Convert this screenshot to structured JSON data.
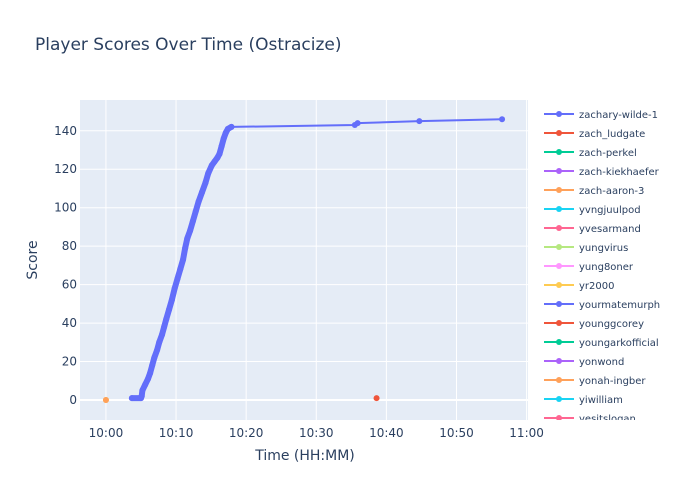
{
  "chart_data": {
    "type": "line",
    "title": "Player Scores Over Time (Ostracize)",
    "xlabel": "Time (HH:MM)",
    "ylabel": "Score",
    "xlim": [
      "09:56:18",
      "11:00:12"
    ],
    "ylim": [
      -10.4,
      156
    ],
    "x_ticks": [
      "10:00",
      "10:10",
      "10:20",
      "10:30",
      "10:40",
      "10:50",
      "11:00"
    ],
    "y_ticks": [
      0,
      20,
      40,
      60,
      80,
      100,
      120,
      140
    ],
    "grid": true,
    "legend_position": "right",
    "series": [
      {
        "name": "zachary-wilde-1",
        "color": "#636efa",
        "points": [
          [
            "10:03:42",
            1
          ],
          [
            "10:05:00",
            1
          ],
          [
            "10:05:06",
            2
          ],
          [
            "10:05:12",
            5
          ],
          [
            "10:05:36",
            8
          ],
          [
            "10:06:00",
            11
          ],
          [
            "10:06:18",
            14
          ],
          [
            "10:06:36",
            18
          ],
          [
            "10:06:54",
            22
          ],
          [
            "10:07:18",
            26
          ],
          [
            "10:07:36",
            30
          ],
          [
            "10:08:00",
            34
          ],
          [
            "10:08:18",
            38
          ],
          [
            "10:08:36",
            42
          ],
          [
            "10:09:00",
            47
          ],
          [
            "10:09:24",
            52
          ],
          [
            "10:09:48",
            58
          ],
          [
            "10:10:12",
            63
          ],
          [
            "10:10:36",
            68
          ],
          [
            "10:11:00",
            73
          ],
          [
            "10:11:18",
            79
          ],
          [
            "10:11:36",
            84
          ],
          [
            "10:12:00",
            88
          ],
          [
            "10:12:24",
            93
          ],
          [
            "10:12:48",
            98
          ],
          [
            "10:13:12",
            103
          ],
          [
            "10:13:42",
            108
          ],
          [
            "10:14:12",
            113
          ],
          [
            "10:14:36",
            118
          ],
          [
            "10:15:06",
            122
          ],
          [
            "10:15:30",
            124
          ],
          [
            "10:15:54",
            126
          ],
          [
            "10:16:12",
            128
          ],
          [
            "10:16:30",
            132
          ],
          [
            "10:16:48",
            136
          ],
          [
            "10:17:06",
            139
          ],
          [
            "10:17:24",
            141
          ],
          [
            "10:17:54",
            142
          ],
          [
            "10:35:30",
            143
          ],
          [
            "10:35:54",
            144
          ],
          [
            "10:44:42",
            145
          ],
          [
            "10:56:30",
            146
          ]
        ]
      },
      {
        "name": "zach_ludgate",
        "color": "#EF553B",
        "points": [
          [
            "10:38:36",
            1
          ]
        ]
      },
      {
        "name": "zach-perkel",
        "color": "#00cc96",
        "points": []
      },
      {
        "name": "zach-kiekhaefer",
        "color": "#ab63fa",
        "points": []
      },
      {
        "name": "zach-aaron-3",
        "color": "#FFA15A",
        "points": [
          [
            "10:00:00",
            0
          ]
        ]
      },
      {
        "name": "yvngjuulpod",
        "color": "#19d3f3",
        "points": []
      },
      {
        "name": "yvesarmand",
        "color": "#FF6692",
        "points": []
      },
      {
        "name": "yungvirus",
        "color": "#B6E880",
        "points": []
      },
      {
        "name": "yung8oner",
        "color": "#FF97FF",
        "points": []
      },
      {
        "name": "yr2000",
        "color": "#FECB52",
        "points": [
          [
            "10:00:00",
            0
          ]
        ]
      },
      {
        "name": "yourmatemurph",
        "color": "#636efa",
        "points": []
      },
      {
        "name": "younggcorey",
        "color": "#EF553B",
        "points": []
      },
      {
        "name": "youngarkofficial",
        "color": "#00cc96",
        "points": []
      },
      {
        "name": "yonwond",
        "color": "#ab63fa",
        "points": []
      },
      {
        "name": "yonah-ingber",
        "color": "#FFA15A",
        "points": []
      },
      {
        "name": "yiwilliam",
        "color": "#19d3f3",
        "points": []
      },
      {
        "name": "yesitslogan",
        "color": "#FF6692",
        "points": []
      }
    ]
  }
}
